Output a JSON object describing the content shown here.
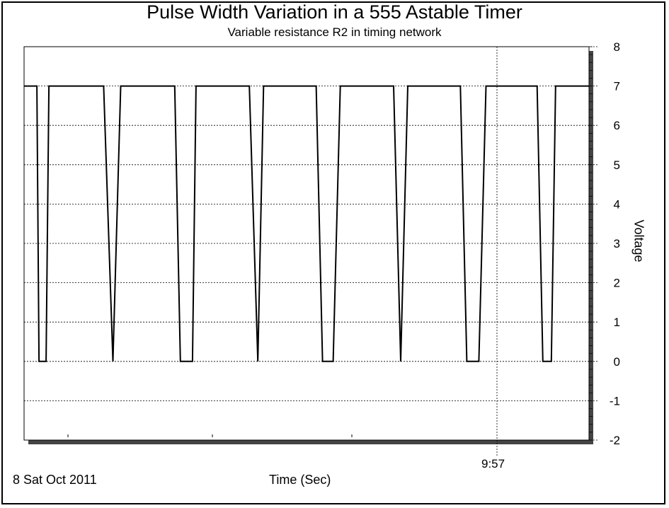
{
  "chart_data": {
    "type": "line",
    "title": "Pulse Width Variation in a 555 Astable Timer",
    "subtitle": "Variable resistance R2 in timing network",
    "xlabel": "Time (Sec)",
    "ylabel": "Voltage",
    "date_label": "8 Sat Oct 2011",
    "cursor_label": "9:57",
    "ylim": [
      -2,
      8
    ],
    "y_ticks": [
      "8",
      "7",
      "6",
      "5",
      "4",
      "3",
      "2",
      "1",
      "0",
      "-1",
      "-2"
    ],
    "grid": true,
    "series": [
      {
        "points": [
          [
            0,
            7
          ],
          [
            18,
            7
          ],
          [
            21,
            0
          ],
          [
            31,
            0
          ],
          [
            35,
            7
          ],
          [
            112,
            7
          ],
          [
            125,
            0
          ],
          [
            136,
            7
          ],
          [
            212,
            7
          ],
          [
            220,
            0
          ],
          [
            237,
            0
          ],
          [
            242,
            7
          ],
          [
            317,
            7
          ],
          [
            329,
            0
          ],
          [
            337,
            7
          ],
          [
            411,
            7
          ],
          [
            420,
            0
          ],
          [
            435,
            0
          ],
          [
            445,
            7
          ],
          [
            520,
            7
          ],
          [
            530,
            0
          ],
          [
            540,
            7
          ],
          [
            614,
            7
          ],
          [
            623,
            0
          ],
          [
            640,
            0
          ],
          [
            650,
            7
          ],
          [
            722,
            7
          ],
          [
            730,
            0
          ],
          [
            742,
            0
          ],
          [
            748,
            7
          ],
          [
            795,
            7
          ]
        ]
      }
    ]
  },
  "colors": {
    "line": "#000000",
    "grid": "#000000",
    "shadow": "#444444",
    "background": "#ffffff"
  }
}
